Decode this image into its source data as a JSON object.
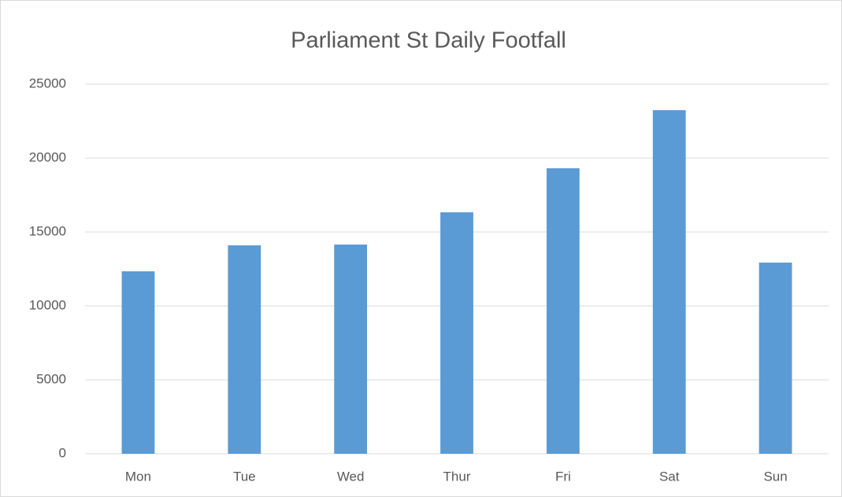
{
  "chart_data": {
    "type": "bar",
    "title": "Parliament St Daily Footfall",
    "categories": [
      "Mon",
      "Tue",
      "Wed",
      "Thur",
      "Fri",
      "Sat",
      "Sun"
    ],
    "values": [
      12340,
      14100,
      14150,
      16330,
      19310,
      23240,
      12930
    ],
    "color": "#5b9bd5",
    "ylim": [
      0,
      25000
    ],
    "yticks": [
      0,
      5000,
      10000,
      15000,
      20000,
      25000
    ],
    "grid": true
  }
}
